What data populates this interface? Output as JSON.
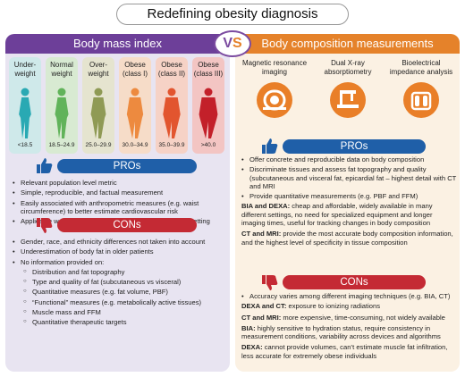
{
  "title": "Redefining obesity diagnosis",
  "vs": {
    "v": "V",
    "s": "S"
  },
  "left": {
    "header": "Body mass index",
    "categories": [
      {
        "label": "Under-\nweight",
        "range": "<18.5",
        "bg": "#cfe9ea",
        "fig": "#29a9b3"
      },
      {
        "label": "Normal\nweight",
        "range": "18.5–24.9",
        "bg": "#d8ead2",
        "fig": "#61b35a"
      },
      {
        "label": "Over-\nweight",
        "range": "25.0–29.9",
        "bg": "#e5e4cf",
        "fig": "#8f9a55"
      },
      {
        "label": "Obese\n(class I)",
        "range": "30.0–34.9",
        "bg": "#f6dcc8",
        "fig": "#ed8a3f"
      },
      {
        "label": "Obese\n(class II)",
        "range": "35.0–39.9",
        "bg": "#f6d2c6",
        "fig": "#e2552f"
      },
      {
        "label": "Obese\n(class III)",
        "range": ">40.0",
        "bg": "#f3c5c3",
        "fig": "#c3202a"
      }
    ],
    "pros_label": "PROs",
    "pros": [
      "Relevant population level metric",
      "Simple, reproducible, and factual measurement",
      "Easily associated with anthropometric measures (e.g. waist circumference) to better estimate cardiovascular risk",
      "Applicable worldwide, regardless of high- or low-income setting"
    ],
    "cons_label": "CONs",
    "cons": [
      "Gender, race, and ethnicity differences not taken into account",
      "Underestimation of body fat in older patients",
      "No information provided on:"
    ],
    "cons_sub": [
      "Distribution and fat topography",
      "Type and quality of fat (subcutaneous vs visceral)",
      "Quantitative measures (e.g. fat volume, PBF)",
      "“Functional” measures (e.g. metabolically active tissues)",
      "Muscle mass and FFM",
      "Quantitative therapeutic targets"
    ]
  },
  "right": {
    "header": "Body composition measurements",
    "methods": [
      {
        "label": "Magnetic resonance\nimaging",
        "icon": "mri-scanner-icon"
      },
      {
        "label": "Dual X-ray\nabsorptiometry",
        "icon": "dexa-scanner-icon"
      },
      {
        "label": "Bioelectrical\nimpedance analysis",
        "icon": "bia-scale-icon"
      }
    ],
    "pros_label": "PROs",
    "pros": [
      "Offer concrete and reproducible data on body composition",
      "Discriminate tissues and assess fat topography and quality (subcutaneous and visceral fat, epicardial fat – highest detail with CT and MRI",
      "Provide quantitative measurements (e.g. PBF and FFM)"
    ],
    "pros_paras": [
      {
        "key": "BIA and DEXA:",
        "text": " cheap and affordable, widely available in many different settings, no need for specialized equipment and longer imaging times, useful for tracking changes in body composition"
      },
      {
        "key": "CT and MRI:",
        "text": " provide the most accurate body composition information, and the highest level of specificity in tissue composition"
      }
    ],
    "cons_label": "CONs",
    "cons": [
      "Accuracy varies among different imaging techniques (e.g. BIA, CT)"
    ],
    "cons_paras": [
      {
        "key": "DEXA and CT:",
        "text": " exposure to ionizing radiations"
      },
      {
        "key": "CT and MRI:",
        "text": " more expensive, time-consuming, not widely available"
      },
      {
        "key": "BIA:",
        "text": " highly sensitive to hydration status, require consistency in measurement conditions, variability across devices and algorithms"
      },
      {
        "key": "DEXA:",
        "text": " cannot provide volumes, can’t estimate muscle fat infiltration, less accurate for extremely obese individuals"
      }
    ]
  },
  "colors": {
    "purple": "#6d3f99",
    "orange": "#e5822a",
    "blue": "#1f5fa8",
    "red": "#c42a34"
  }
}
